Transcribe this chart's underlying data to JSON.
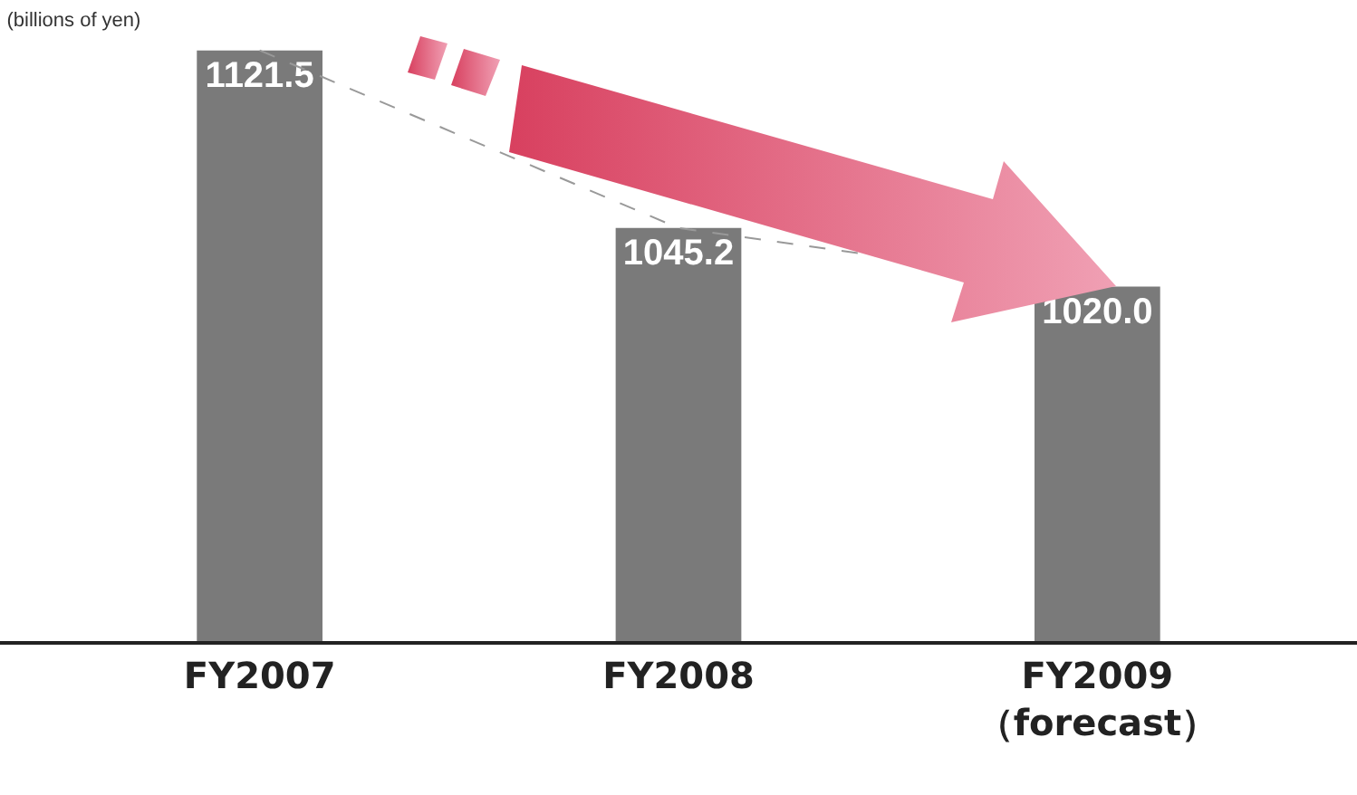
{
  "chart_data": {
    "type": "bar",
    "title": "(billions of yen)",
    "categories": [
      "FY2007",
      "FY2008",
      "FY2009\n（forecast）"
    ],
    "series": [
      {
        "type": "bar",
        "color": "#7a7a7a",
        "values": [
          1121.5,
          1045.2,
          1020.0
        ],
        "value_labels": [
          "1121.5",
          "1045.2",
          "1020.0"
        ]
      },
      {
        "type": "line",
        "color": "#999999",
        "line_style": "dashed",
        "values": [
          1121.5,
          1045.2,
          1020.0
        ]
      }
    ],
    "grid": false,
    "tick_labels": "x"
  }
}
